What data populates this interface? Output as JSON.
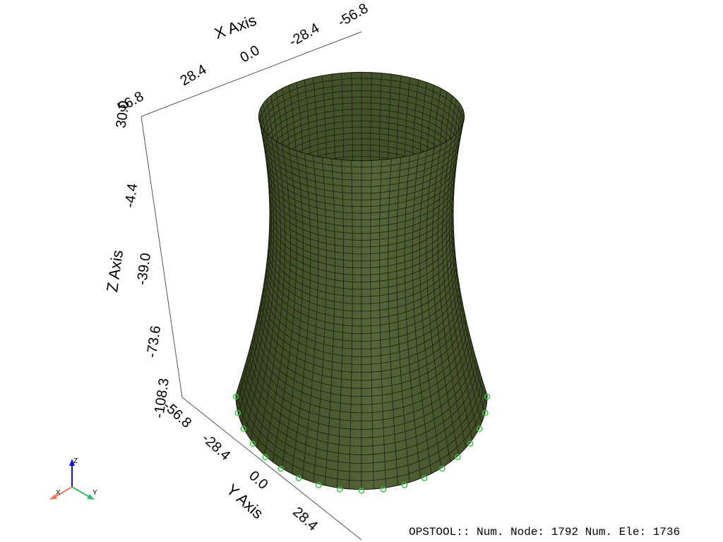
{
  "axes": {
    "x": {
      "title": "X Axis",
      "ticks": [
        "56.8",
        "28.4",
        "0.0",
        "-28.4",
        "-56.8"
      ]
    },
    "y": {
      "title": "Y Axis",
      "ticks": [
        "-56.8",
        "-28.4",
        "0.0",
        "28.4"
      ]
    },
    "z": {
      "title": "Z Axis",
      "ticks": [
        "30.0",
        "-4.4",
        "-39.0",
        "-73.6",
        "-108.3"
      ]
    }
  },
  "orientation": {
    "x": "X",
    "y": "Y",
    "z": "Z"
  },
  "status": "OPSTOOL:: Num. Node: 1792 Num. Ele: 1736"
}
